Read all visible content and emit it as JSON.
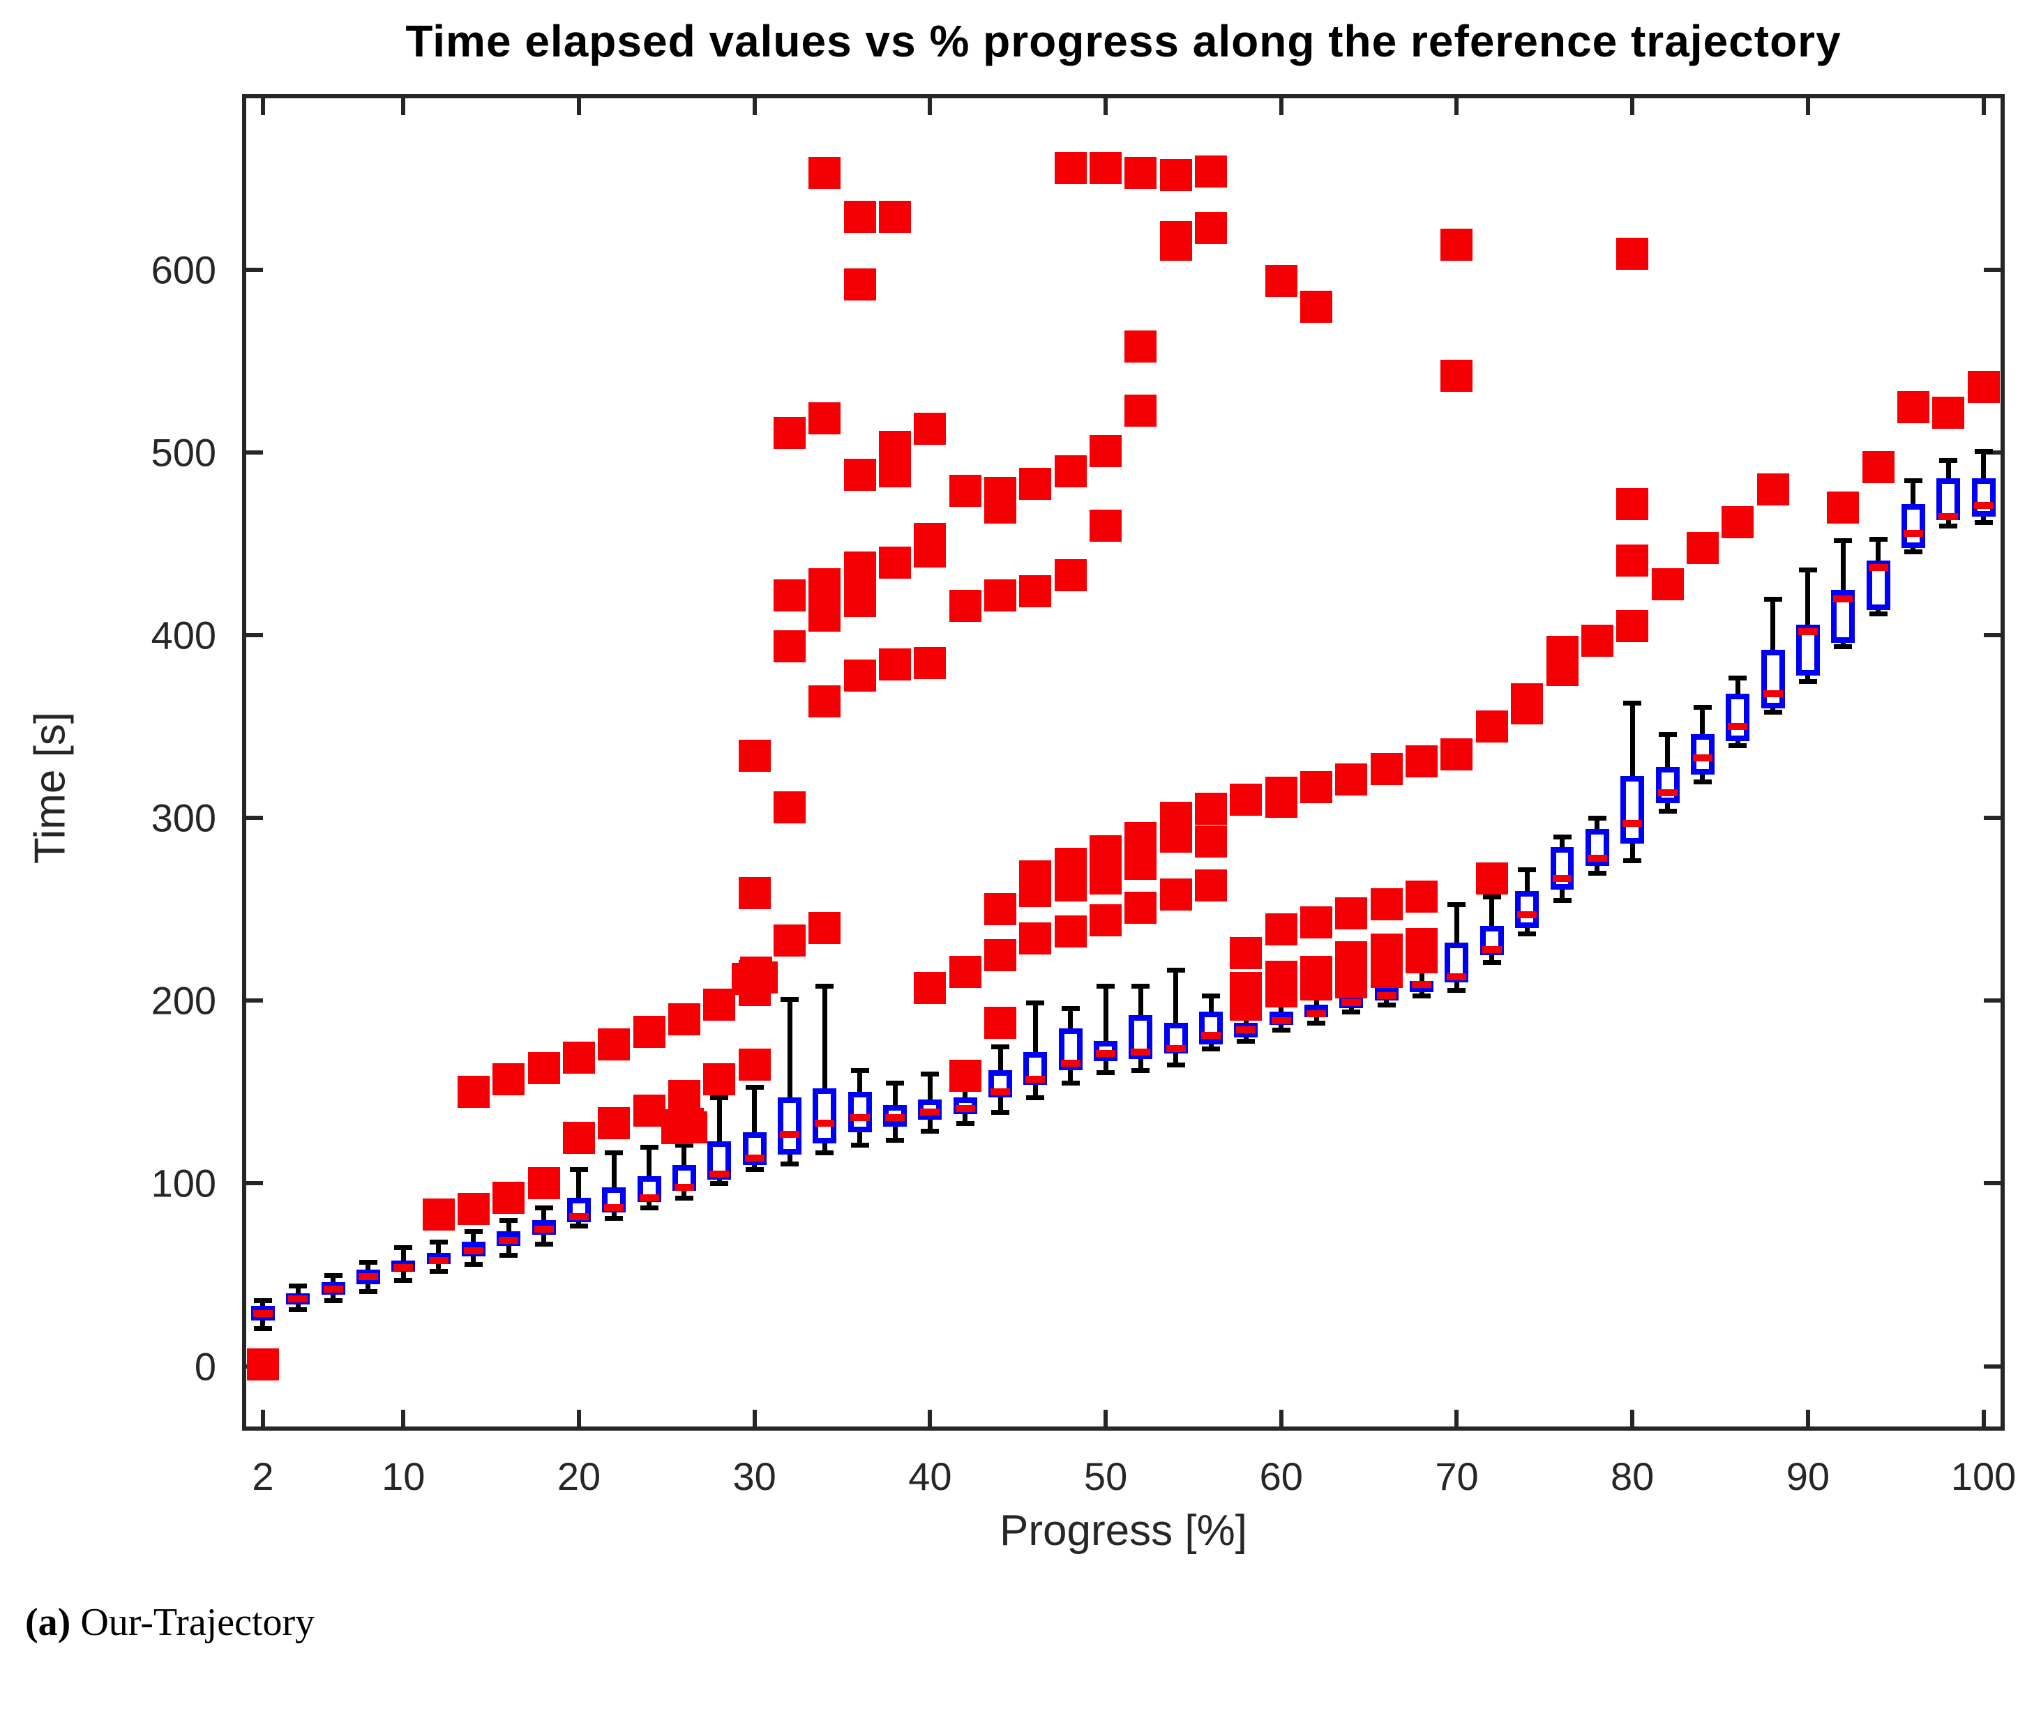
{
  "figure": {
    "caption": {
      "open": "(",
      "letter": "a",
      "close": ")",
      "text": " Our-Trajectory"
    }
  },
  "chart_data": {
    "type": "boxplot",
    "title": "Time elapsed values vs % progress along the reference trajectory",
    "xlabel": "Progress [%]",
    "ylabel": "Time [s]",
    "xlim": [
      1.05,
      100.97
    ],
    "ylim": [
      -33,
      694
    ],
    "xticks": [
      2,
      10,
      20,
      30,
      40,
      50,
      60,
      70,
      80,
      90,
      100
    ],
    "yticks": [
      0,
      100,
      200,
      300,
      400,
      500,
      600
    ],
    "grid": false,
    "legend": null,
    "colors": {
      "box": "#0000F5",
      "median": "#F40004",
      "outlier": "#F40004",
      "whisker": "#000000",
      "axis": "#262626"
    },
    "box_width": 1.35,
    "boxes": [
      {
        "x": 2,
        "lo": 21,
        "q1": 25,
        "med": 29,
        "q3": 33,
        "hi": 36
      },
      {
        "x": 4,
        "lo": 31,
        "q1": 34,
        "med": 37,
        "q3": 40,
        "hi": 44
      },
      {
        "x": 6,
        "lo": 36,
        "q1": 39,
        "med": 42,
        "q3": 46,
        "hi": 50
      },
      {
        "x": 8,
        "lo": 41,
        "q1": 45,
        "med": 49,
        "q3": 53,
        "hi": 57
      },
      {
        "x": 10,
        "lo": 47,
        "q1": 52,
        "med": 54,
        "q3": 58,
        "hi": 65
      },
      {
        "x": 12,
        "lo": 52,
        "q1": 56,
        "med": 58,
        "q3": 62,
        "hi": 68
      },
      {
        "x": 14,
        "lo": 56,
        "q1": 60,
        "med": 63,
        "q3": 68,
        "hi": 74
      },
      {
        "x": 16,
        "lo": 61,
        "q1": 66,
        "med": 69,
        "q3": 74,
        "hi": 80
      },
      {
        "x": 18,
        "lo": 67,
        "q1": 72,
        "med": 75,
        "q3": 80,
        "hi": 87
      },
      {
        "x": 20,
        "lo": 77,
        "q1": 79,
        "med": 82,
        "q3": 92,
        "hi": 108
      },
      {
        "x": 22,
        "lo": 81,
        "q1": 84,
        "med": 87,
        "q3": 98,
        "hi": 117
      },
      {
        "x": 24,
        "lo": 87,
        "q1": 90,
        "med": 92,
        "q3": 104,
        "hi": 120
      },
      {
        "x": 26,
        "lo": 92,
        "q1": 96,
        "med": 98,
        "q3": 110,
        "hi": 121
      },
      {
        "x": 28,
        "lo": 100,
        "q1": 102,
        "med": 105,
        "q3": 123,
        "hi": 147
      },
      {
        "x": 30,
        "lo": 108,
        "q1": 110,
        "med": 114,
        "q3": 128,
        "hi": 153
      },
      {
        "x": 32,
        "lo": 111,
        "q1": 116,
        "med": 127,
        "q3": 147,
        "hi": 201
      },
      {
        "x": 34,
        "lo": 117,
        "q1": 122,
        "med": 133,
        "q3": 152,
        "hi": 208
      },
      {
        "x": 36,
        "lo": 121,
        "q1": 128,
        "med": 136,
        "q3": 150,
        "hi": 162
      },
      {
        "x": 38,
        "lo": 124,
        "q1": 131,
        "med": 136,
        "q3": 143,
        "hi": 155
      },
      {
        "x": 40,
        "lo": 129,
        "q1": 135,
        "med": 139,
        "q3": 146,
        "hi": 160
      },
      {
        "x": 42,
        "lo": 133,
        "q1": 138,
        "med": 141,
        "q3": 147,
        "hi": 155
      },
      {
        "x": 44,
        "lo": 139,
        "q1": 147,
        "med": 150,
        "q3": 162,
        "hi": 175
      },
      {
        "x": 46,
        "lo": 147,
        "q1": 154,
        "med": 157,
        "q3": 172,
        "hi": 199
      },
      {
        "x": 48,
        "lo": 155,
        "q1": 162,
        "med": 166,
        "q3": 185,
        "hi": 196
      },
      {
        "x": 50,
        "lo": 161,
        "q1": 167,
        "med": 171,
        "q3": 178,
        "hi": 208
      },
      {
        "x": 52,
        "lo": 162,
        "q1": 168,
        "med": 172,
        "q3": 192,
        "hi": 208
      },
      {
        "x": 54,
        "lo": 165,
        "q1": 171,
        "med": 174,
        "q3": 188,
        "hi": 217
      },
      {
        "x": 56,
        "lo": 174,
        "q1": 176,
        "med": 181,
        "q3": 194,
        "hi": 203
      },
      {
        "x": 58,
        "lo": 178,
        "q1": 180,
        "med": 184,
        "q3": 188,
        "hi": 192
      },
      {
        "x": 60,
        "lo": 184,
        "q1": 187,
        "med": 189,
        "q3": 194,
        "hi": 198
      },
      {
        "x": 62,
        "lo": 188,
        "q1": 191,
        "med": 193,
        "q3": 198,
        "hi": 203
      },
      {
        "x": 64,
        "lo": 194,
        "q1": 196,
        "med": 199,
        "q3": 202,
        "hi": 206
      },
      {
        "x": 66,
        "lo": 198,
        "q1": 200,
        "med": 203,
        "q3": 207,
        "hi": 213
      },
      {
        "x": 68,
        "lo": 203,
        "q1": 205,
        "med": 209,
        "q3": 211,
        "hi": 218
      },
      {
        "x": 70,
        "lo": 206,
        "q1": 210,
        "med": 213,
        "q3": 232,
        "hi": 253
      },
      {
        "x": 72,
        "lo": 221,
        "q1": 225,
        "med": 228,
        "q3": 241,
        "hi": 257
      },
      {
        "x": 74,
        "lo": 237,
        "q1": 240,
        "med": 247,
        "q3": 260,
        "hi": 272
      },
      {
        "x": 76,
        "lo": 255,
        "q1": 261,
        "med": 267,
        "q3": 284,
        "hi": 290
      },
      {
        "x": 78,
        "lo": 270,
        "q1": 274,
        "med": 278,
        "q3": 294,
        "hi": 300
      },
      {
        "x": 80,
        "lo": 277,
        "q1": 286,
        "med": 297,
        "q3": 323,
        "hi": 363
      },
      {
        "x": 82,
        "lo": 304,
        "q1": 308,
        "med": 314,
        "q3": 328,
        "hi": 346
      },
      {
        "x": 84,
        "lo": 320,
        "q1": 324,
        "med": 333,
        "q3": 346,
        "hi": 361
      },
      {
        "x": 86,
        "lo": 340,
        "q1": 342,
        "med": 350,
        "q3": 368,
        "hi": 377
      },
      {
        "x": 88,
        "lo": 358,
        "q1": 360,
        "med": 368,
        "q3": 392,
        "hi": 420
      },
      {
        "x": 90,
        "lo": 375,
        "q1": 378,
        "med": 402,
        "q3": 406,
        "hi": 436
      },
      {
        "x": 92,
        "lo": 394,
        "q1": 396,
        "med": 420,
        "q3": 425,
        "hi": 452
      },
      {
        "x": 94,
        "lo": 412,
        "q1": 414,
        "med": 437,
        "q3": 441,
        "hi": 453
      },
      {
        "x": 96,
        "lo": 446,
        "q1": 448,
        "med": 456,
        "q3": 472,
        "hi": 485
      },
      {
        "x": 98,
        "lo": 460,
        "q1": 463,
        "med": 465,
        "q3": 486,
        "hi": 496
      },
      {
        "x": 100,
        "lo": 462,
        "q1": 465,
        "med": 471,
        "q3": 486,
        "hi": 501
      }
    ],
    "outliers": [
      [
        2,
        1
      ],
      [
        12,
        83
      ],
      [
        14,
        86
      ],
      [
        16,
        92
      ],
      [
        18,
        100
      ],
      [
        20,
        125
      ],
      [
        22,
        133
      ],
      [
        24,
        140
      ],
      [
        26,
        148
      ],
      [
        28,
        157
      ],
      [
        30,
        165
      ],
      [
        25.6,
        130.5
      ],
      [
        26,
        131.5
      ],
      [
        26.4,
        130.8
      ],
      [
        26.2,
        132.6
      ],
      [
        25.8,
        132
      ],
      [
        14,
        150
      ],
      [
        16,
        157
      ],
      [
        18,
        163
      ],
      [
        20,
        169
      ],
      [
        22,
        176
      ],
      [
        24,
        183
      ],
      [
        26,
        190
      ],
      [
        28,
        198
      ],
      [
        30,
        206
      ],
      [
        29.6,
        212
      ],
      [
        30,
        213.5
      ],
      [
        30.4,
        212.8
      ],
      [
        30.1,
        215.5
      ],
      [
        32,
        233
      ],
      [
        34,
        240
      ],
      [
        30,
        259
      ],
      [
        32,
        306
      ],
      [
        30,
        334
      ],
      [
        32,
        394
      ],
      [
        34,
        364
      ],
      [
        36,
        378
      ],
      [
        38,
        384
      ],
      [
        40,
        385
      ],
      [
        32,
        422
      ],
      [
        34,
        411
      ],
      [
        34,
        428
      ],
      [
        36,
        419
      ],
      [
        36,
        426
      ],
      [
        36,
        437
      ],
      [
        38,
        440
      ],
      [
        40,
        446
      ],
      [
        40,
        453
      ],
      [
        42,
        416
      ],
      [
        44,
        422
      ],
      [
        46,
        424
      ],
      [
        48,
        433
      ],
      [
        50,
        460
      ],
      [
        32,
        511
      ],
      [
        34,
        519
      ],
      [
        36,
        488
      ],
      [
        38,
        490
      ],
      [
        38,
        503
      ],
      [
        40,
        513
      ],
      [
        42,
        479
      ],
      [
        44,
        470
      ],
      [
        44,
        478
      ],
      [
        46,
        483
      ],
      [
        48,
        490
      ],
      [
        50,
        501
      ],
      [
        52,
        523
      ],
      [
        52,
        558
      ],
      [
        54,
        614
      ],
      [
        56,
        623
      ],
      [
        34,
        653
      ],
      [
        36,
        629
      ],
      [
        38,
        629
      ],
      [
        36,
        592
      ],
      [
        48,
        656
      ],
      [
        50,
        656
      ],
      [
        52,
        653
      ],
      [
        54,
        652
      ],
      [
        56,
        654
      ],
      [
        54,
        618
      ],
      [
        60,
        594
      ],
      [
        62,
        580
      ],
      [
        70,
        614
      ],
      [
        70,
        542
      ],
      [
        40,
        207
      ],
      [
        42,
        216
      ],
      [
        44,
        225
      ],
      [
        46,
        234
      ],
      [
        48,
        238
      ],
      [
        50,
        244
      ],
      [
        52,
        251
      ],
      [
        54,
        258
      ],
      [
        56,
        263
      ],
      [
        44,
        250
      ],
      [
        46,
        260
      ],
      [
        46,
        268
      ],
      [
        48,
        263
      ],
      [
        48,
        275
      ],
      [
        50,
        267
      ],
      [
        50,
        282
      ],
      [
        52,
        275
      ],
      [
        52,
        289
      ],
      [
        54,
        290
      ],
      [
        54,
        300
      ],
      [
        56,
        287
      ],
      [
        56,
        305
      ],
      [
        58,
        310
      ],
      [
        60,
        309
      ],
      [
        60,
        314
      ],
      [
        62,
        317
      ],
      [
        64,
        321
      ],
      [
        66,
        327
      ],
      [
        68,
        331
      ],
      [
        70,
        335
      ],
      [
        72,
        350
      ],
      [
        74,
        360
      ],
      [
        74,
        365
      ],
      [
        76,
        381
      ],
      [
        76,
        391
      ],
      [
        78,
        397
      ],
      [
        80,
        405
      ],
      [
        58,
        198
      ],
      [
        58,
        207
      ],
      [
        58,
        226
      ],
      [
        60,
        205
      ],
      [
        60,
        213
      ],
      [
        60,
        239
      ],
      [
        62,
        209
      ],
      [
        62,
        216
      ],
      [
        62,
        243
      ],
      [
        64,
        210
      ],
      [
        64,
        216
      ],
      [
        64,
        224
      ],
      [
        64,
        248
      ],
      [
        66,
        216
      ],
      [
        66,
        221
      ],
      [
        66,
        228
      ],
      [
        66,
        253
      ],
      [
        68,
        224
      ],
      [
        68,
        231
      ],
      [
        68,
        257
      ],
      [
        72,
        267
      ],
      [
        42,
        159
      ],
      [
        44,
        188
      ],
      [
        72,
        267
      ],
      [
        80,
        441
      ],
      [
        80,
        472
      ],
      [
        80,
        609
      ],
      [
        82,
        428
      ],
      [
        84,
        448
      ],
      [
        86,
        462
      ],
      [
        88,
        480
      ],
      [
        92,
        470
      ],
      [
        94,
        492
      ],
      [
        96,
        525
      ],
      [
        98,
        522
      ],
      [
        100,
        536
      ]
    ]
  }
}
